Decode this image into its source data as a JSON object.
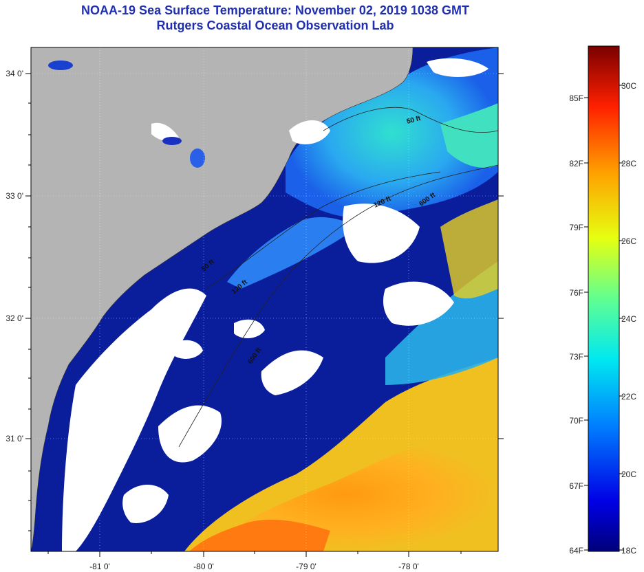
{
  "header": {
    "title": "NOAA-19 Sea Surface Temperature:  November 02, 2019 1038 GMT",
    "subtitle": "Rutgers Coastal Ocean Observation Lab"
  },
  "map": {
    "lon_ticks": [
      "-81 0'",
      "-80 0'",
      "-79 0'",
      "-78 0'"
    ],
    "lat_ticks": [
      "34 0'",
      "33 0'",
      "32 0'",
      "31 0'"
    ],
    "isobaths": [
      "50 ft",
      "120 ft",
      "120 ft",
      "600 ft",
      "600 ft",
      "50 ft"
    ]
  },
  "colorbar": {
    "fahrenheit": [
      "85F",
      "82F",
      "79F",
      "76F",
      "73F",
      "70F",
      "67F",
      "64F"
    ],
    "celsius": [
      "30C",
      "28C",
      "26C",
      "24C",
      "22C",
      "20C",
      "18C"
    ]
  },
  "colors": {
    "title": "#1f2fb0",
    "land": "#b4b4b4",
    "cloud": "#ffffff",
    "cold_water": "#0a1e9c"
  }
}
